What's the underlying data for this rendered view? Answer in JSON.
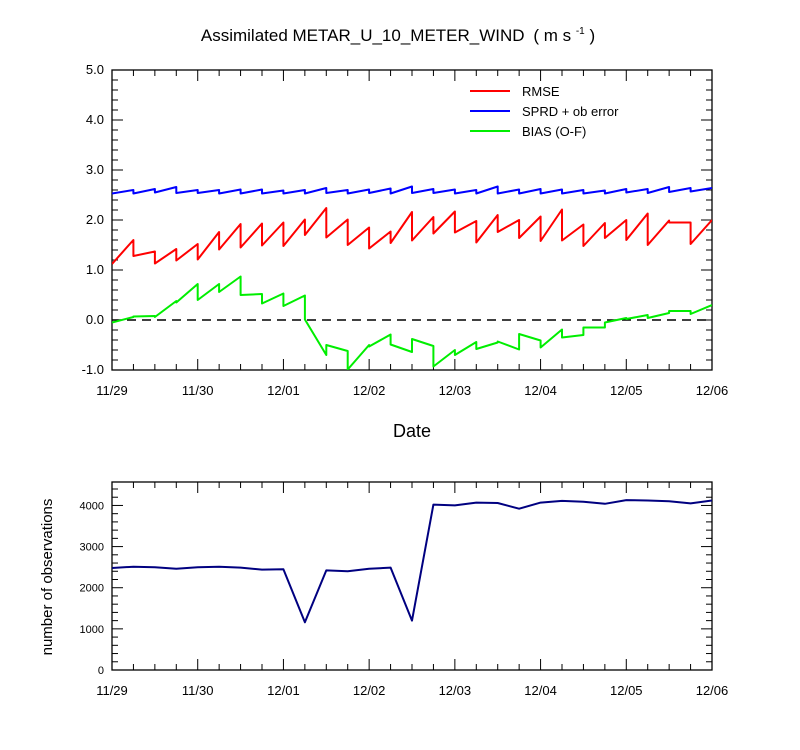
{
  "chart_data": [
    {
      "type": "line",
      "title": "Assimilated METAR_U_10_METER_WIND",
      "title_units": "( m s",
      "title_units_exp": "-1",
      "title_units_close": " )",
      "xlabel": "Date",
      "ylabel": "",
      "xlim": [
        0,
        7
      ],
      "ylim": [
        -1.0,
        5.0
      ],
      "x_tick_labels": [
        "11/29",
        "11/30",
        "12/01",
        "12/02",
        "12/03",
        "12/04",
        "12/05",
        "12/06"
      ],
      "y_ticks": [
        -1.0,
        0.0,
        1.0,
        2.0,
        3.0,
        4.0,
        5.0
      ],
      "y_tick_labels": [
        "-1.0",
        "0.0",
        "1.0",
        "2.0",
        "3.0",
        "4.0",
        "5.0"
      ],
      "reference_line": {
        "y": 0.0,
        "style": "dashed",
        "color": "#000000"
      },
      "legend_position": "top-right",
      "series": [
        {
          "name": "RMSE",
          "color": "#ff0000",
          "x": [
            0.0,
            0.0,
            0.25,
            0.25,
            0.5,
            0.5,
            0.75,
            0.75,
            1.0,
            1.0,
            1.25,
            1.25,
            1.5,
            1.5,
            1.75,
            1.75,
            2.0,
            2.0,
            2.25,
            2.25,
            2.5,
            2.5,
            2.75,
            2.75,
            3.0,
            3.0,
            3.25,
            3.25,
            3.5,
            3.5,
            3.75,
            3.75,
            4.0,
            4.0,
            4.25,
            4.25,
            4.5,
            4.5,
            4.75,
            4.75,
            5.0,
            5.0,
            5.25,
            5.25,
            5.5,
            5.5,
            5.75,
            5.75,
            6.0,
            6.0,
            6.25,
            6.25,
            6.5,
            6.5,
            6.75,
            6.75,
            7.0
          ],
          "y": [
            1.12,
            1.12,
            1.6,
            1.28,
            1.37,
            1.13,
            1.42,
            1.19,
            1.52,
            1.21,
            1.76,
            1.41,
            1.92,
            1.45,
            1.93,
            1.49,
            1.95,
            1.48,
            2.01,
            1.7,
            2.24,
            1.65,
            2.01,
            1.5,
            1.85,
            1.43,
            1.77,
            1.54,
            2.16,
            1.59,
            2.06,
            1.73,
            2.17,
            1.75,
            1.98,
            1.55,
            2.1,
            1.76,
            2.0,
            1.64,
            2.07,
            1.58,
            2.21,
            1.59,
            1.91,
            1.48,
            1.94,
            1.64,
            2.0,
            1.6,
            2.13,
            1.5,
            1.99,
            1.95,
            1.95,
            1.52,
            2.0
          ]
        },
        {
          "name": "SPRD + ob error",
          "color": "#0000ff",
          "x": [
            0.0,
            0.0,
            0.25,
            0.25,
            0.5,
            0.5,
            0.75,
            0.75,
            1.0,
            1.0,
            1.25,
            1.25,
            1.5,
            1.5,
            1.75,
            1.75,
            2.0,
            2.0,
            2.25,
            2.25,
            2.5,
            2.5,
            2.75,
            2.75,
            3.0,
            3.0,
            3.25,
            3.25,
            3.5,
            3.5,
            3.75,
            3.75,
            4.0,
            4.0,
            4.25,
            4.25,
            4.5,
            4.5,
            4.75,
            4.75,
            5.0,
            5.0,
            5.25,
            5.25,
            5.5,
            5.5,
            5.75,
            5.75,
            6.0,
            6.0,
            6.25,
            6.25,
            6.5,
            6.5,
            6.75,
            6.75,
            7.0
          ],
          "y": [
            2.53,
            2.53,
            2.6,
            2.53,
            2.62,
            2.55,
            2.66,
            2.54,
            2.6,
            2.54,
            2.6,
            2.53,
            2.61,
            2.53,
            2.61,
            2.53,
            2.59,
            2.53,
            2.6,
            2.53,
            2.64,
            2.54,
            2.6,
            2.53,
            2.61,
            2.54,
            2.63,
            2.53,
            2.67,
            2.54,
            2.62,
            2.54,
            2.61,
            2.53,
            2.6,
            2.53,
            2.67,
            2.53,
            2.61,
            2.53,
            2.62,
            2.53,
            2.61,
            2.53,
            2.6,
            2.53,
            2.59,
            2.53,
            2.62,
            2.55,
            2.62,
            2.54,
            2.66,
            2.56,
            2.64,
            2.57,
            2.64
          ]
        },
        {
          "name": "BIAS (O-F)",
          "color": "#00ee00",
          "x": [
            0.0,
            0.0,
            0.25,
            0.25,
            0.5,
            0.5,
            0.75,
            0.75,
            1.0,
            1.0,
            1.25,
            1.25,
            1.5,
            1.5,
            1.75,
            1.75,
            2.0,
            2.0,
            2.25,
            2.25,
            2.5,
            2.5,
            2.75,
            2.75,
            3.0,
            3.0,
            3.25,
            3.25,
            3.5,
            3.5,
            3.75,
            3.75,
            4.0,
            4.0,
            4.25,
            4.25,
            4.5,
            4.5,
            4.75,
            4.75,
            5.0,
            5.0,
            5.25,
            5.25,
            5.5,
            5.5,
            5.75,
            5.75,
            6.0,
            6.0,
            6.25,
            6.25,
            6.5,
            6.5,
            6.75,
            6.75,
            7.0
          ],
          "y": [
            -0.05,
            -0.05,
            0.06,
            0.07,
            0.08,
            0.06,
            0.38,
            0.35,
            0.72,
            0.4,
            0.72,
            0.56,
            0.87,
            0.5,
            0.52,
            0.33,
            0.53,
            0.28,
            0.49,
            0.01,
            -0.7,
            -0.5,
            -0.62,
            -0.99,
            -0.5,
            -0.53,
            -0.29,
            -0.49,
            -0.64,
            -0.38,
            -0.52,
            -0.93,
            -0.6,
            -0.7,
            -0.44,
            -0.58,
            -0.45,
            -0.43,
            -0.59,
            -0.28,
            -0.41,
            -0.55,
            -0.19,
            -0.35,
            -0.3,
            -0.15,
            -0.15,
            -0.05,
            0.04,
            0.02,
            0.1,
            0.04,
            0.14,
            0.18,
            0.18,
            0.12,
            0.3
          ]
        }
      ]
    },
    {
      "type": "line",
      "title": "",
      "xlabel": "",
      "ylabel": "number of observations",
      "xlim": [
        0,
        7
      ],
      "ylim": [
        0,
        4570
      ],
      "x_tick_labels": [
        "11/29",
        "11/30",
        "12/01",
        "12/02",
        "12/03",
        "12/04",
        "12/05",
        "12/06"
      ],
      "y_ticks": [
        0,
        1000,
        2000,
        3000,
        4000
      ],
      "y_tick_labels": [
        "0",
        "1000",
        "2000",
        "3000",
        "4000"
      ],
      "series": [
        {
          "color": "#000080",
          "x": [
            0,
            0.25,
            0.5,
            0.75,
            1.0,
            1.25,
            1.5,
            1.75,
            2.0,
            2.25,
            2.5,
            2.75,
            3.0,
            3.25,
            3.5,
            3.75,
            4.0,
            4.25,
            4.5,
            4.75,
            5.0,
            5.25,
            5.5,
            5.75,
            6.0,
            6.25,
            6.5,
            6.75,
            7.0
          ],
          "y": [
            2480,
            2510,
            2500,
            2460,
            2500,
            2510,
            2490,
            2440,
            2450,
            1160,
            2420,
            2400,
            2460,
            2490,
            1200,
            4020,
            4000,
            4070,
            4060,
            3920,
            4070,
            4110,
            4090,
            4040,
            4130,
            4120,
            4100,
            4050,
            4120
          ]
        }
      ]
    }
  ]
}
